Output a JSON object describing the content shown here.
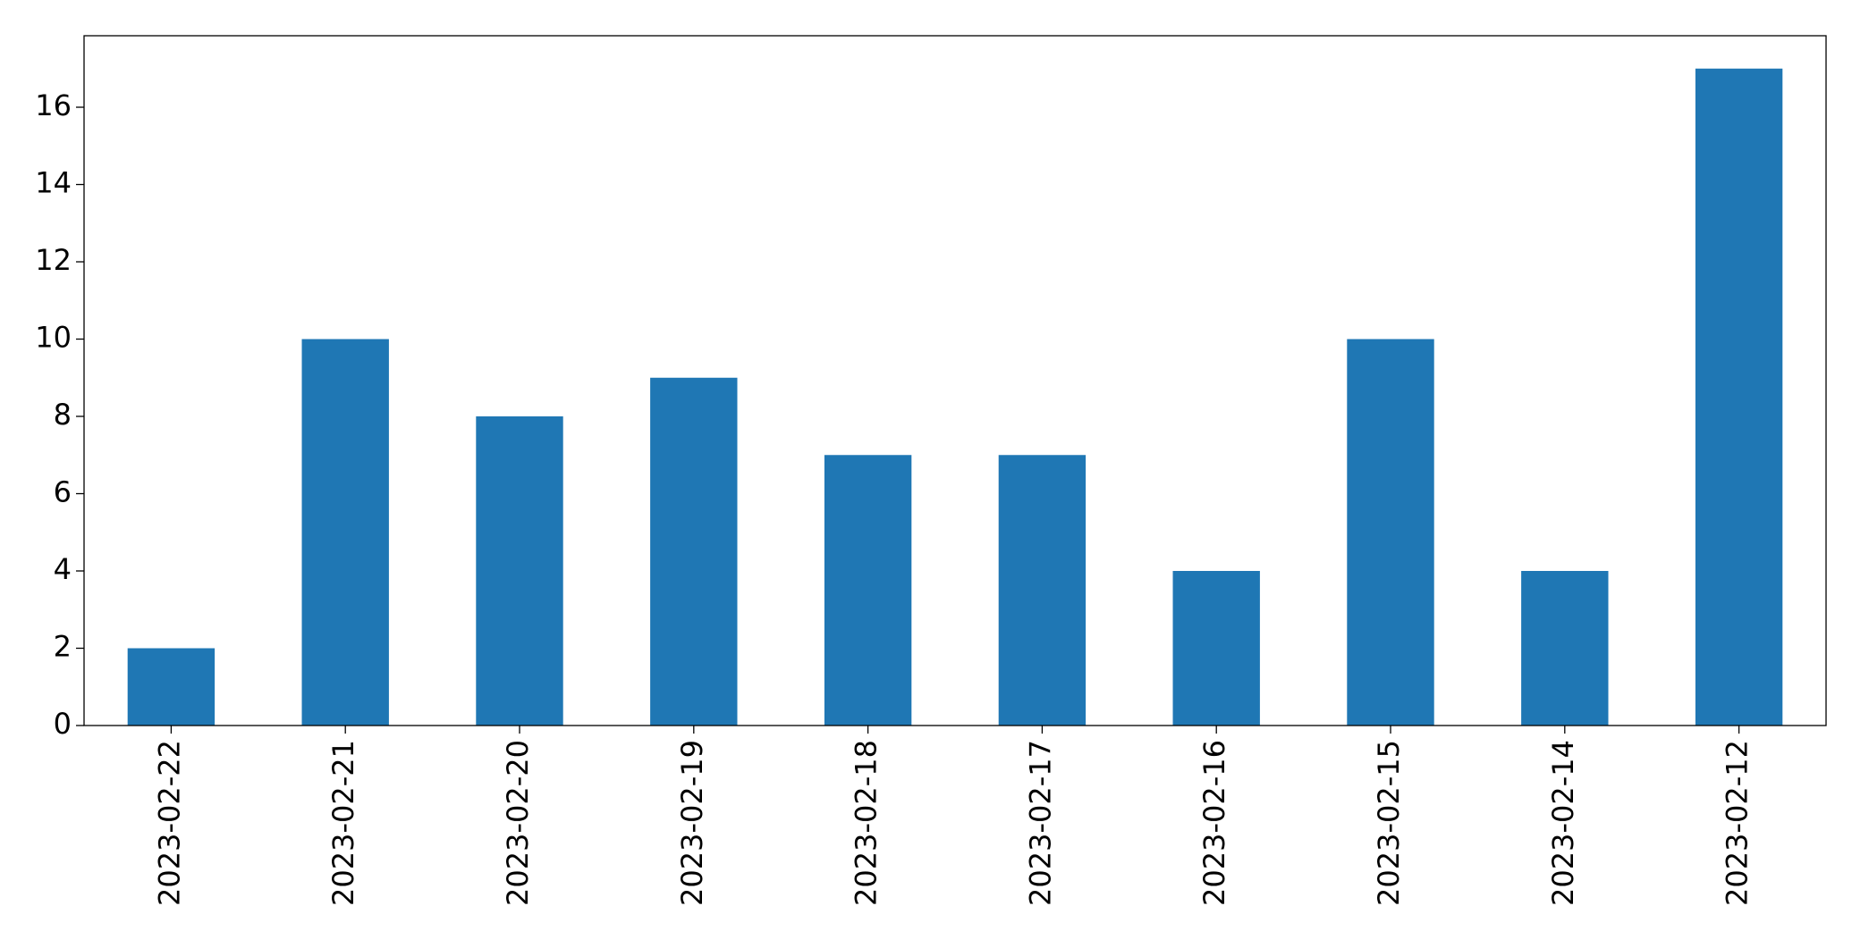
{
  "chart_data": {
    "type": "bar",
    "categories": [
      "2023-02-22",
      "2023-02-21",
      "2023-02-20",
      "2023-02-19",
      "2023-02-18",
      "2023-02-17",
      "2023-02-16",
      "2023-02-15",
      "2023-02-14",
      "2023-02-12"
    ],
    "values": [
      2,
      10,
      8,
      9,
      7,
      7,
      4,
      10,
      4,
      17
    ],
    "color": "#1f77b4",
    "ylim": [
      0,
      17.85
    ],
    "yticks": [
      0,
      2,
      4,
      6,
      8,
      10,
      12,
      14,
      16
    ],
    "grid": false
  }
}
